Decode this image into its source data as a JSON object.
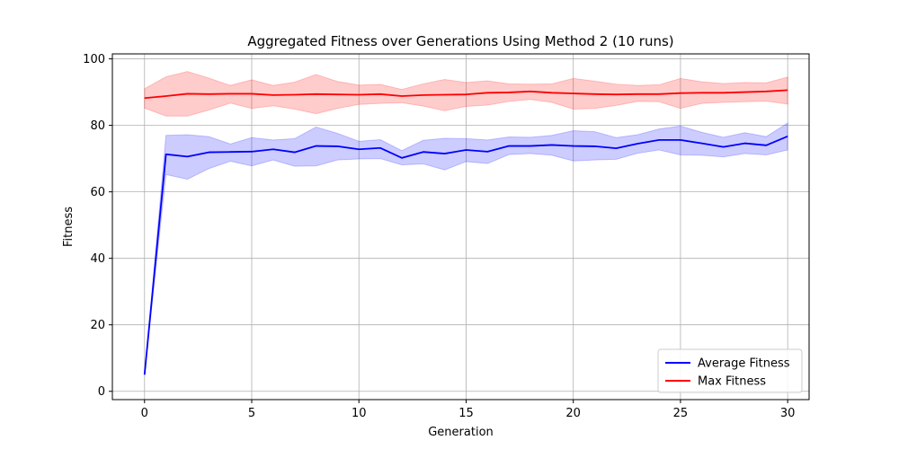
{
  "chart_data": {
    "type": "line",
    "title": "Aggregated Fitness over Generations Using Method 2 (10 runs)",
    "xlabel": "Generation",
    "ylabel": "Fitness",
    "xlim": [
      -1.5,
      31.0
    ],
    "ylim": [
      -2.5,
      101.5
    ],
    "xticks": [
      0,
      5,
      10,
      15,
      20,
      25,
      30
    ],
    "yticks": [
      0,
      20,
      40,
      60,
      80,
      100
    ],
    "grid": true,
    "legend_position": "lower-right",
    "x": [
      0,
      1,
      2,
      3,
      4,
      5,
      6,
      7,
      8,
      9,
      10,
      11,
      12,
      13,
      14,
      15,
      16,
      17,
      18,
      19,
      20,
      21,
      22,
      23,
      24,
      25,
      26,
      27,
      28,
      29,
      30
    ],
    "series": [
      {
        "name": "Average Fitness",
        "color": "#0000ff",
        "band_color": "#0000ff",
        "values": [
          5.0,
          71.3,
          70.6,
          71.9,
          72.0,
          72.1,
          72.8,
          71.9,
          73.8,
          73.7,
          72.8,
          73.2,
          70.2,
          72.0,
          71.5,
          72.6,
          72.1,
          73.8,
          73.8,
          74.1,
          73.8,
          73.7,
          73.1,
          74.5,
          75.6,
          75.6,
          74.6,
          73.5,
          74.6,
          74.0,
          76.7
        ],
        "lower": [
          5.0,
          65.2,
          63.8,
          67.0,
          69.2,
          67.8,
          69.6,
          67.7,
          67.8,
          69.6,
          69.9,
          70.0,
          68.1,
          68.4,
          66.6,
          69.1,
          68.5,
          71.2,
          71.5,
          71.0,
          69.3,
          69.6,
          69.8,
          71.6,
          72.6,
          71.1,
          71.0,
          70.5,
          71.5,
          71.1,
          72.6
        ],
        "upper": [
          5.0,
          77.0,
          77.2,
          76.6,
          74.4,
          76.3,
          75.6,
          76.0,
          79.5,
          77.6,
          75.2,
          75.7,
          72.4,
          75.5,
          76.1,
          76.0,
          75.6,
          76.5,
          76.4,
          77.0,
          78.4,
          78.1,
          76.3,
          77.2,
          78.9,
          79.8,
          77.9,
          76.4,
          77.8,
          76.6,
          80.7
        ]
      },
      {
        "name": "Max Fitness",
        "color": "#ff0000",
        "band_color": "#ff0000",
        "values": [
          88.2,
          88.8,
          89.5,
          89.4,
          89.5,
          89.5,
          89.1,
          89.2,
          89.4,
          89.3,
          89.2,
          89.4,
          88.8,
          89.1,
          89.2,
          89.3,
          89.8,
          89.9,
          90.2,
          89.8,
          89.6,
          89.4,
          89.3,
          89.4,
          89.4,
          89.7,
          89.8,
          89.8,
          90.0,
          90.2,
          90.6
        ],
        "lower": [
          85.2,
          82.8,
          82.8,
          84.6,
          86.7,
          85.1,
          85.9,
          84.9,
          83.5,
          85.1,
          86.3,
          86.6,
          86.8,
          85.8,
          84.4,
          85.7,
          86.1,
          87.2,
          87.8,
          86.9,
          84.9,
          85.1,
          86.0,
          87.2,
          87.1,
          85.1,
          86.6,
          86.9,
          87.1,
          87.3,
          86.4
        ],
        "upper": [
          91.0,
          94.6,
          96.2,
          94.2,
          92.0,
          93.7,
          92.0,
          93.0,
          95.3,
          93.2,
          92.1,
          92.3,
          90.8,
          92.5,
          93.8,
          92.9,
          93.4,
          92.5,
          92.4,
          92.5,
          94.1,
          93.3,
          92.4,
          92.0,
          92.2,
          94.1,
          93.1,
          92.6,
          92.9,
          92.8,
          94.5
        ]
      }
    ]
  }
}
